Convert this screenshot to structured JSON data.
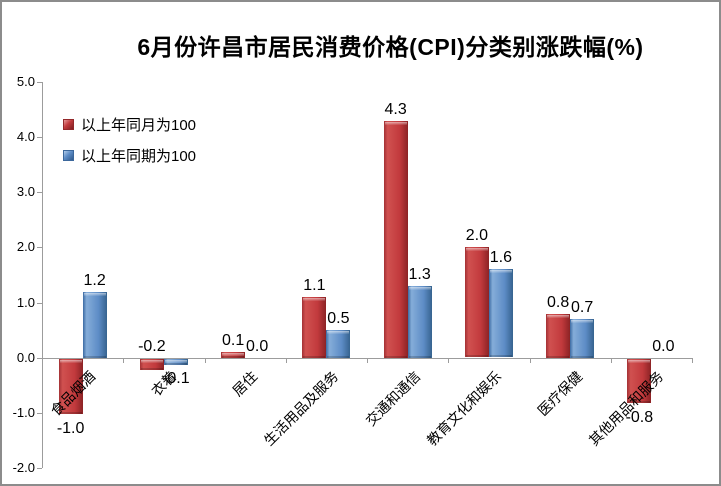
{
  "chart_data": {
    "type": "bar",
    "title": "6月份许昌市居民消费价格(CPI)分类别涨跌幅(%)",
    "categories": [
      "食品烟酒",
      "衣着",
      "居住",
      "生活用品及服务",
      "交通和通信",
      "教育文化和娱乐",
      "医疗保健",
      "其他用品和服务"
    ],
    "series": [
      {
        "name": "以上年同月为100",
        "color": "#c23a3d",
        "values": [
          -1.0,
          -0.2,
          0.1,
          1.1,
          4.3,
          2.0,
          0.8,
          -0.8
        ]
      },
      {
        "name": "以上年同期为100",
        "color": "#5d8cc6",
        "values": [
          1.2,
          -0.1,
          0.0,
          0.5,
          1.3,
          1.6,
          0.7,
          0.0
        ]
      }
    ],
    "xlabel": "",
    "ylabel": "",
    "ylim": [
      -2.0,
      5.0
    ],
    "ytick_step": 1.0,
    "ytick_labels": [
      "5.0",
      "4.0",
      "3.0",
      "2.0",
      "1.0",
      "0.0",
      "-1.0",
      "-2.0"
    ],
    "grid": false,
    "legend_position": "top-left-inside",
    "value_labels": true,
    "category_label_rotation_deg": -45,
    "label_overrides": [
      {
        "category": 1,
        "series": 0,
        "position": "above"
      }
    ],
    "axis_color": "#9c9c9c",
    "frame_border_color": "#8c8c8c"
  }
}
